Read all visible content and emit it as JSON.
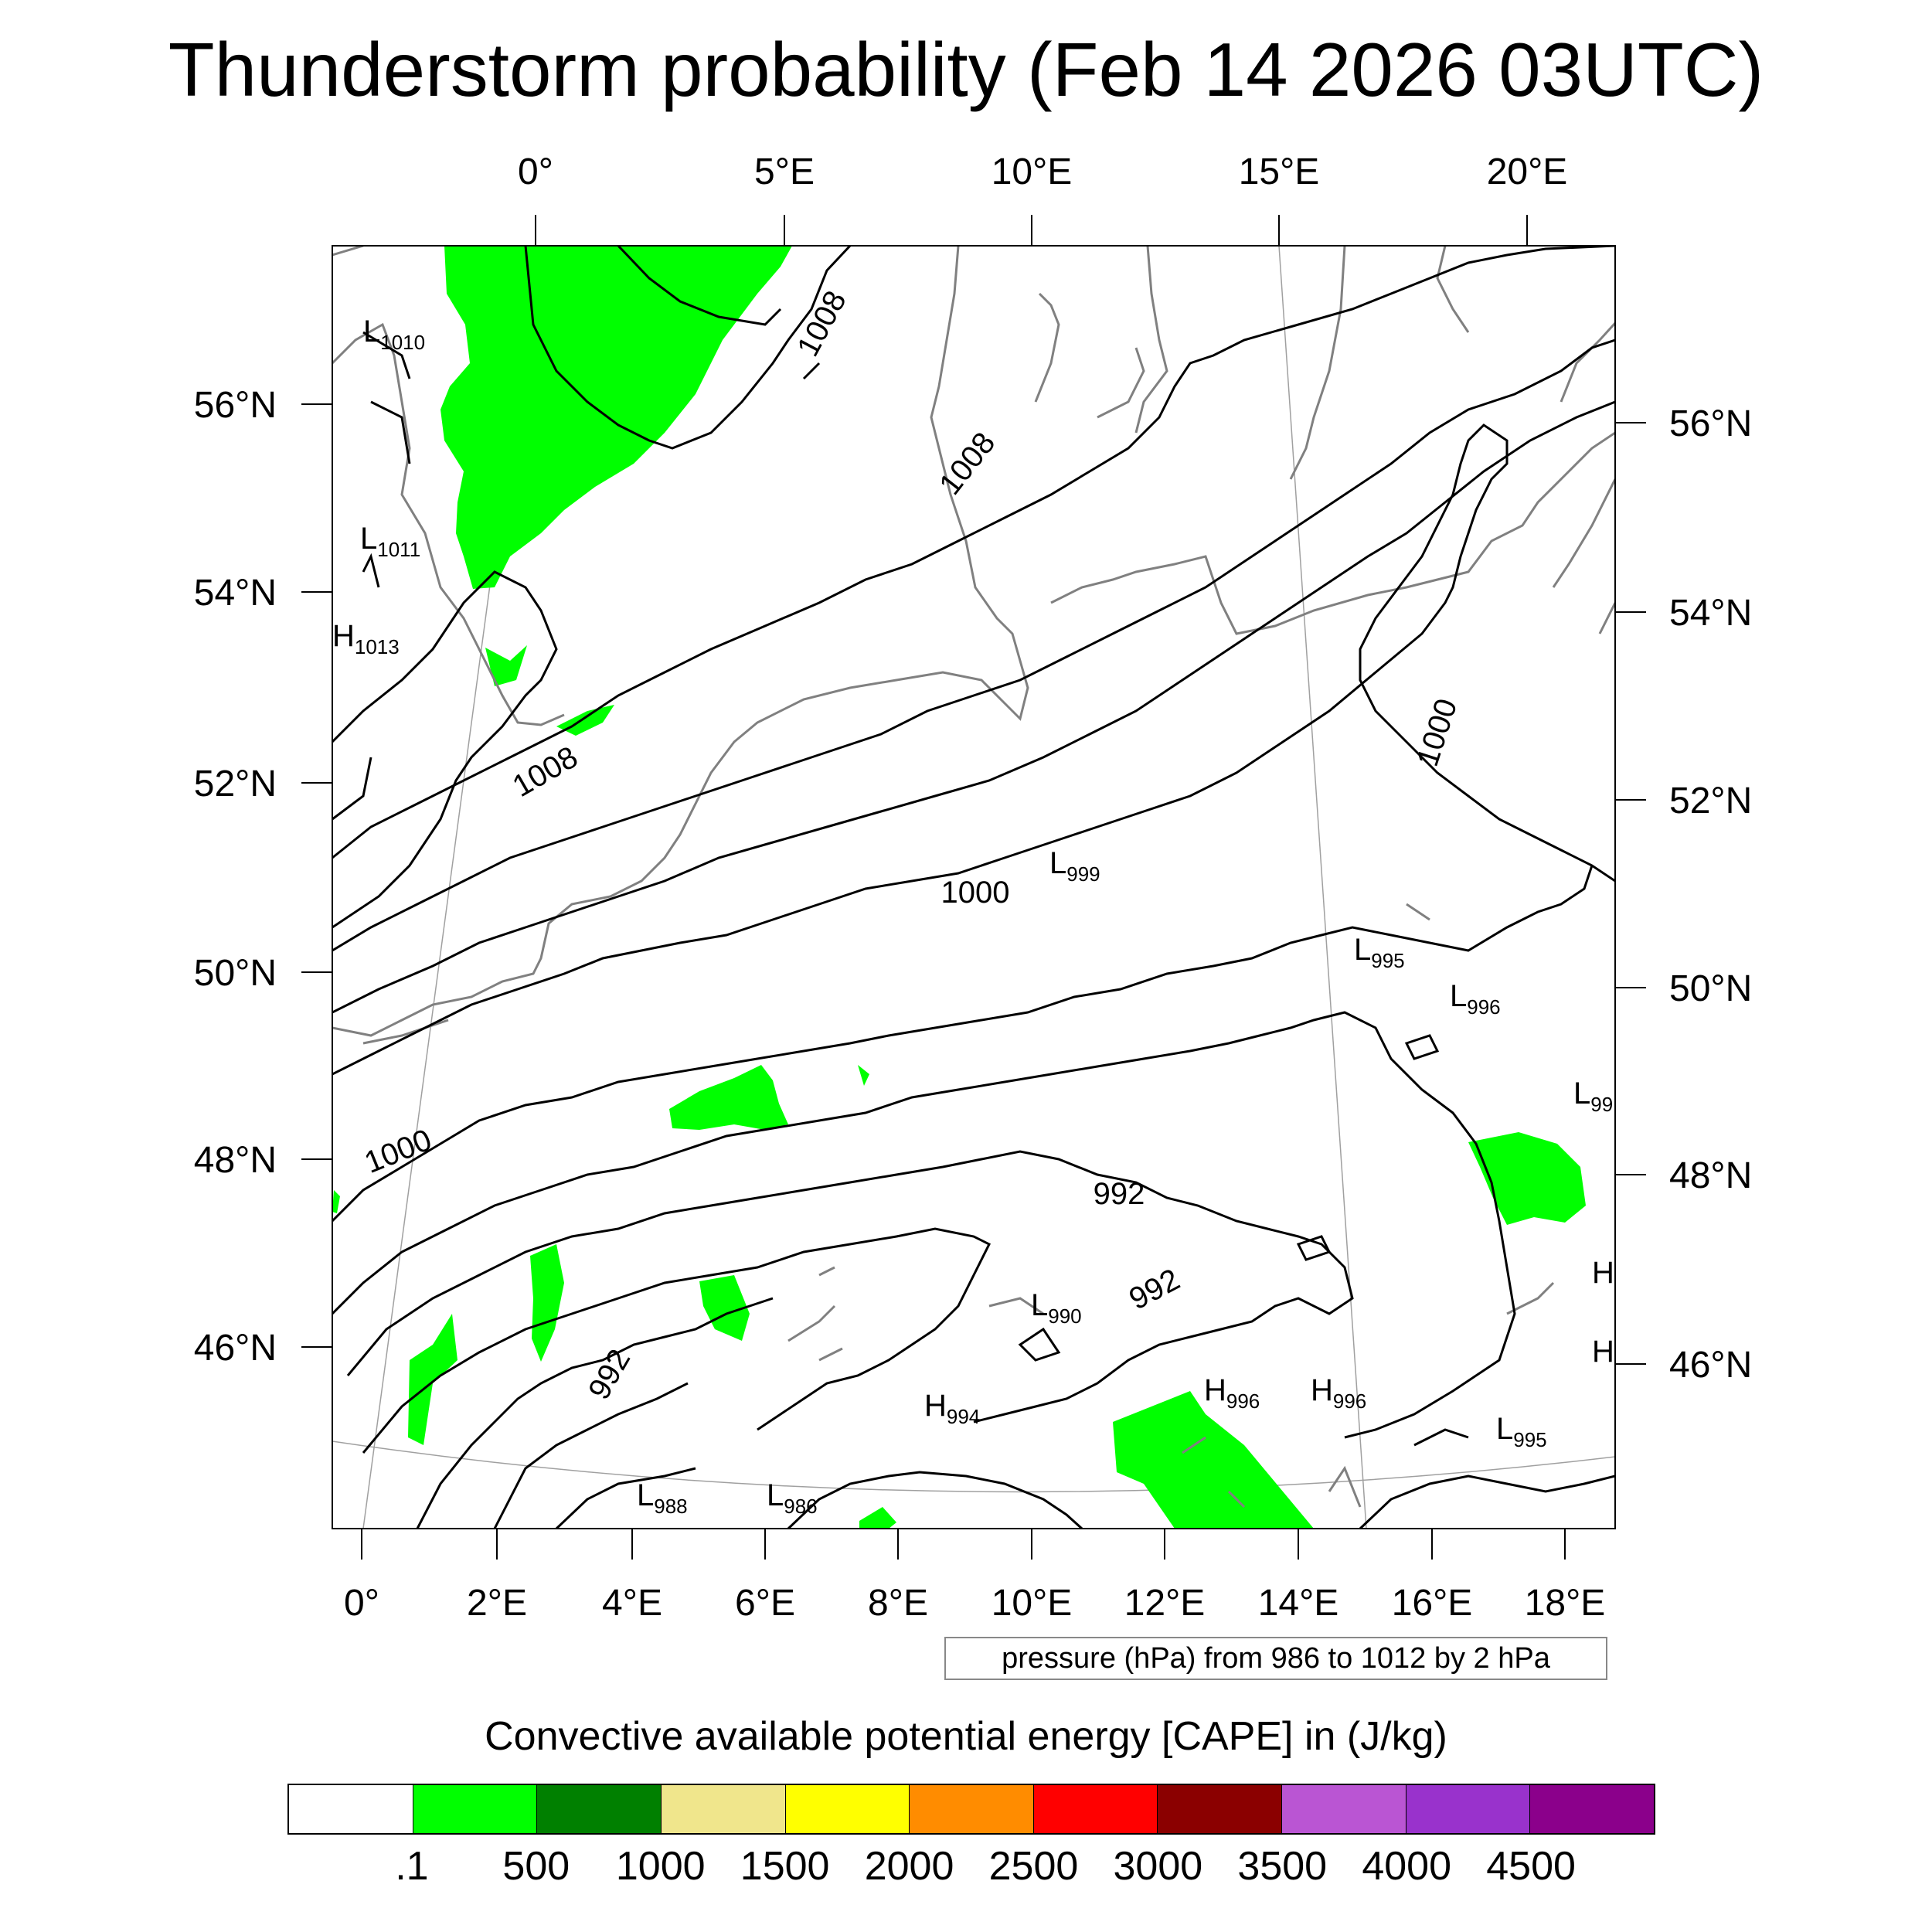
{
  "title": "Thunderstorm probability (Feb 14 2026 03UTC)",
  "map": {
    "top_lon_labels": [
      "0°",
      "5°E",
      "10°E",
      "15°E",
      "20°E"
    ],
    "bottom_lon_labels": [
      "0°",
      "2°E",
      "4°E",
      "6°E",
      "8°E",
      "10°E",
      "12°E",
      "14°E",
      "16°E",
      "18°E"
    ],
    "left_lat_labels": [
      "56°N",
      "54°N",
      "52°N",
      "50°N",
      "48°N",
      "46°N"
    ],
    "right_lat_labels": [
      "56°N",
      "54°N",
      "52°N",
      "50°N",
      "48°N",
      "46°N"
    ],
    "contour_labels": [
      "1008",
      "1008",
      "1008",
      "1000",
      "1000",
      "1000",
      "992",
      "992",
      "992"
    ],
    "pressure_centers": [
      {
        "type": "L",
        "value": "1010"
      },
      {
        "type": "L",
        "value": "1011"
      },
      {
        "type": "H",
        "value": "1013"
      },
      {
        "type": "L",
        "value": "999"
      },
      {
        "type": "L",
        "value": "995"
      },
      {
        "type": "L",
        "value": "996"
      },
      {
        "type": "L",
        "value": "99"
      },
      {
        "type": "H",
        "value": ""
      },
      {
        "type": "H",
        "value": ""
      },
      {
        "type": "L",
        "value": "990"
      },
      {
        "type": "H",
        "value": "994"
      },
      {
        "type": "H",
        "value": "996"
      },
      {
        "type": "H",
        "value": "996"
      },
      {
        "type": "L",
        "value": "995"
      },
      {
        "type": "L",
        "value": "988"
      },
      {
        "type": "L",
        "value": "986"
      }
    ],
    "cape_fill_color": "#00ff00"
  },
  "pressure_note": "pressure (hPa) from 986 to 1012 by 2 hPa",
  "colorbar": {
    "title": "Convective available potential energy [CAPE] in (J/kg)",
    "colors": [
      "#ffffff",
      "#00ff00",
      "#008000",
      "#f0e68c",
      "#ffff00",
      "#ff8c00",
      "#ff0000",
      "#8b0000",
      "#ba55d3",
      "#9932cc",
      "#8b008b"
    ],
    "labels": [
      ".1",
      "500",
      "1000",
      "1500",
      "2000",
      "2500",
      "3000",
      "3500",
      "4000",
      "4500"
    ]
  }
}
